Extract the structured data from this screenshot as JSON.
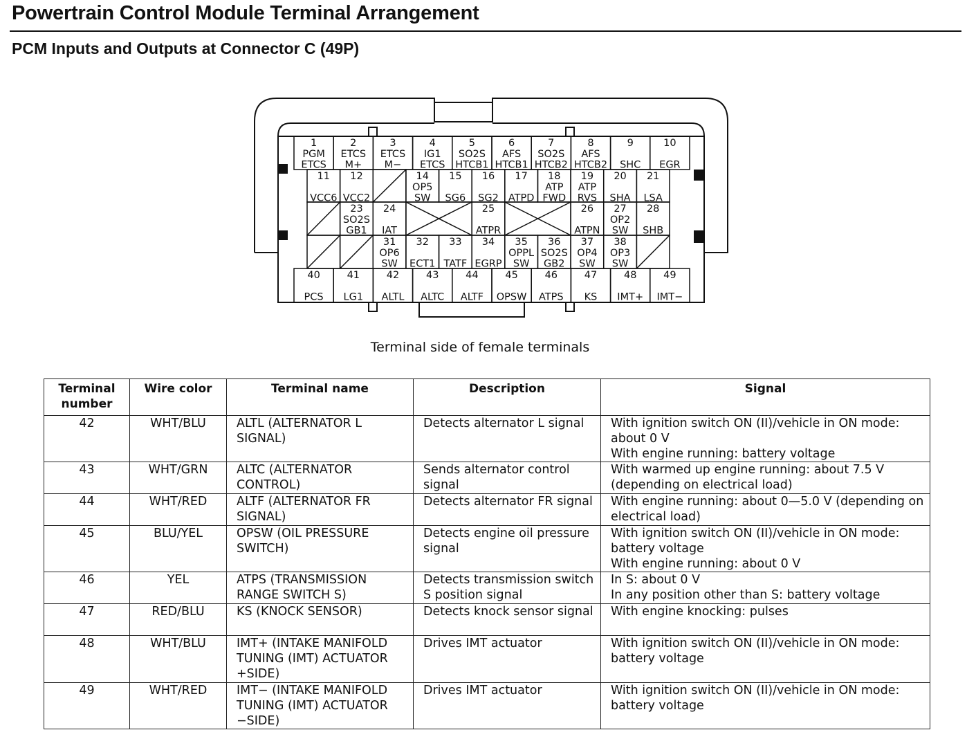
{
  "title": "Powertrain Control Module Terminal Arrangement",
  "subtitle": "PCM Inputs and Outputs at Connector C (49P)",
  "caption": "Terminal side of female terminals",
  "connector": {
    "row1": [
      {
        "n": "1",
        "l": [
          "PGM",
          "ETCS"
        ]
      },
      {
        "n": "2",
        "l": [
          "ETCS",
          "M+"
        ]
      },
      {
        "n": "3",
        "l": [
          "ETCS",
          "M−"
        ]
      },
      {
        "n": "4",
        "l": [
          "IG1",
          "ETCS"
        ]
      },
      {
        "n": "5",
        "l": [
          "SO2S",
          "HTCB1"
        ]
      },
      {
        "n": "6",
        "l": [
          "AFS",
          "HTCB1"
        ]
      },
      {
        "n": "7",
        "l": [
          "SO2S",
          "HTCB2"
        ]
      },
      {
        "n": "8",
        "l": [
          "AFS",
          "HTCB2"
        ]
      },
      {
        "n": "9",
        "l": [
          "",
          "SHC"
        ]
      },
      {
        "n": "10",
        "l": [
          "",
          "EGR"
        ]
      }
    ],
    "row2": [
      {
        "n": "11",
        "l": [
          "",
          "VCC6"
        ]
      },
      {
        "n": "12",
        "l": [
          "",
          "VCC2"
        ]
      },
      {
        "diag": true
      },
      {
        "n": "14",
        "l": [
          "OP5",
          "SW"
        ]
      },
      {
        "n": "15",
        "l": [
          "",
          "SG6"
        ]
      },
      {
        "n": "16",
        "l": [
          "",
          "SG2"
        ]
      },
      {
        "n": "17",
        "l": [
          "",
          "ATPD"
        ]
      },
      {
        "n": "18",
        "l": [
          "ATP",
          "FWD"
        ]
      },
      {
        "n": "19",
        "l": [
          "ATP",
          "RVS"
        ]
      },
      {
        "n": "20",
        "l": [
          "",
          "SHA"
        ]
      },
      {
        "n": "21",
        "l": [
          "",
          "LSA"
        ]
      }
    ],
    "row3": [
      {
        "diag": true
      },
      {
        "n": "23",
        "l": [
          "SO2S",
          "GB1"
        ]
      },
      {
        "n": "24",
        "l": [
          "",
          "IAT"
        ]
      },
      {
        "cross": 2
      },
      {
        "n": "25",
        "l": [
          "",
          "ATPR"
        ]
      },
      {
        "cross": 2
      },
      {
        "n": "26",
        "l": [
          "",
          "ATPN"
        ]
      },
      {
        "n": "27",
        "l": [
          "OP2",
          "SW"
        ]
      },
      {
        "n": "28",
        "l": [
          "",
          "SHB"
        ]
      }
    ],
    "row4": [
      {
        "diag": true
      },
      {
        "diag": true
      },
      {
        "n": "31",
        "l": [
          "OP6",
          "SW"
        ]
      },
      {
        "n": "32",
        "l": [
          "",
          "ECT1"
        ]
      },
      {
        "n": "33",
        "l": [
          "",
          "TATF"
        ]
      },
      {
        "n": "34",
        "l": [
          "",
          "EGRP"
        ]
      },
      {
        "n": "35",
        "l": [
          "OPPL",
          "SW"
        ]
      },
      {
        "n": "36",
        "l": [
          "SO2S",
          "GB2"
        ]
      },
      {
        "n": "37",
        "l": [
          "OP4",
          "SW"
        ]
      },
      {
        "n": "38",
        "l": [
          "OP3",
          "SW"
        ]
      },
      {
        "diag": true
      }
    ],
    "row5": [
      {
        "n": "40",
        "l": [
          "",
          "PCS"
        ]
      },
      {
        "n": "41",
        "l": [
          "",
          "LG1"
        ]
      },
      {
        "n": "42",
        "l": [
          "",
          "ALTL"
        ]
      },
      {
        "n": "43",
        "l": [
          "",
          "ALTC"
        ]
      },
      {
        "n": "44",
        "l": [
          "",
          "ALTF"
        ]
      },
      {
        "n": "45",
        "l": [
          "",
          "OPSW"
        ]
      },
      {
        "n": "46",
        "l": [
          "",
          "ATPS"
        ]
      },
      {
        "n": "47",
        "l": [
          "",
          "KS"
        ]
      },
      {
        "n": "48",
        "l": [
          "",
          "IMT+"
        ]
      },
      {
        "n": "49",
        "l": [
          "",
          "IMT−"
        ]
      }
    ]
  },
  "table": {
    "headers": [
      "Terminal number",
      "Wire color",
      "Terminal name",
      "Description",
      "Signal"
    ],
    "rows": [
      {
        "num": "42",
        "wire": "WHT/BLU",
        "name": "ALTL (ALTERNATOR L SIGNAL)",
        "desc": "Detects alternator L signal",
        "signal": "With ignition switch ON (II)/vehicle in ON mode: about 0 V\nWith engine running: battery voltage"
      },
      {
        "num": "43",
        "wire": "WHT/GRN",
        "name": "ALTC (ALTERNATOR CONTROL)",
        "desc": "Sends alternator control signal",
        "signal": "With warmed up engine running: about 7.5 V (depending on electrical load)"
      },
      {
        "num": "44",
        "wire": "WHT/RED",
        "name": "ALTF (ALTERNATOR FR SIGNAL)",
        "desc": "Detects alternator FR signal",
        "signal": "With engine running: about 0—5.0 V (depending on electrical load)"
      },
      {
        "num": "45",
        "wire": "BLU/YEL",
        "name": "OPSW (OIL PRESSURE SWITCH)",
        "desc": "Detects engine oil pressure signal",
        "signal": "With ignition switch ON (II)/vehicle in ON mode: battery voltage\nWith engine running: about 0 V"
      },
      {
        "num": "46",
        "wire": "YEL",
        "name": "ATPS (TRANSMISSION RANGE SWITCH S)",
        "desc": "Detects transmission switch S position signal",
        "signal": "In S: about 0 V\nIn any position other than S: battery voltage"
      },
      {
        "num": "47",
        "wire": "RED/BLU",
        "name": "KS (KNOCK SENSOR)",
        "desc": "Detects knock sensor signal",
        "signal": "With engine knocking: pulses"
      },
      {
        "num": "48",
        "wire": "WHT/BLU",
        "name": "IMT+ (INTAKE MANIFOLD TUNING (IMT) ACTUATOR +SIDE)",
        "desc": "Drives IMT actuator",
        "signal": "With ignition switch ON (II)/vehicle in ON mode: battery voltage"
      },
      {
        "num": "49",
        "wire": "WHT/RED",
        "name": "IMT− (INTAKE MANIFOLD TUNING (IMT) ACTUATOR −SIDE)",
        "desc": "Drives IMT actuator",
        "signal": "With ignition switch ON (II)/vehicle in ON mode: battery voltage"
      }
    ]
  }
}
